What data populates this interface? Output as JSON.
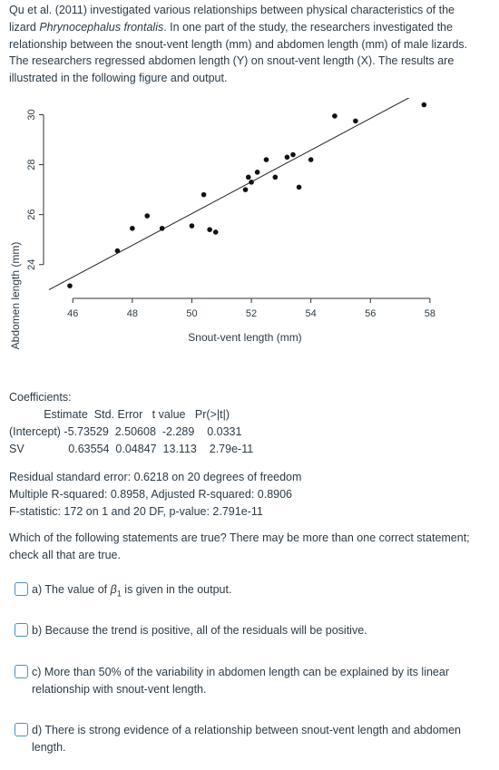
{
  "intro": {
    "part1": "Qu et al. (2011) investigated various relationships between physical characteristics of the lizard ",
    "species": "Phrynocephalus frontalis",
    "part2": ". In one part of the study, the researchers investigated the relationship between the snout-vent length (mm) and abdomen length (mm) of male lizards.  The researchers regressed abdomen length (Y) on snout-vent length (X). The results are illustrated in the following figure and output."
  },
  "chart_data": {
    "type": "scatter",
    "xlabel": "Snout-vent length (mm)",
    "ylabel": "Abdomen length (mm)",
    "xlim": [
      45.2,
      58.4
    ],
    "ylim": [
      22.9,
      30.6
    ],
    "xticks": [
      "46",
      "48",
      "50",
      "52",
      "54",
      "56",
      "58"
    ],
    "yticks": [
      "24",
      "26",
      "28",
      "30"
    ],
    "regression_line": {
      "intercept": -5.73529,
      "slope": 0.63554,
      "x_range": [
        45.2,
        58.3
      ]
    },
    "points": [
      {
        "x": 45.9,
        "y": 23.15
      },
      {
        "x": 47.5,
        "y": 24.55
      },
      {
        "x": 48.0,
        "y": 25.45
      },
      {
        "x": 48.5,
        "y": 25.95
      },
      {
        "x": 49.0,
        "y": 25.45
      },
      {
        "x": 50.0,
        "y": 25.55
      },
      {
        "x": 50.4,
        "y": 26.8
      },
      {
        "x": 50.6,
        "y": 25.4
      },
      {
        "x": 50.8,
        "y": 25.3
      },
      {
        "x": 51.8,
        "y": 27.0
      },
      {
        "x": 51.9,
        "y": 27.5
      },
      {
        "x": 52.0,
        "y": 27.3
      },
      {
        "x": 52.2,
        "y": 27.7
      },
      {
        "x": 52.5,
        "y": 28.2
      },
      {
        "x": 52.8,
        "y": 27.5
      },
      {
        "x": 53.2,
        "y": 28.3
      },
      {
        "x": 53.4,
        "y": 28.4
      },
      {
        "x": 53.6,
        "y": 27.1
      },
      {
        "x": 54.0,
        "y": 28.2
      },
      {
        "x": 54.8,
        "y": 29.95
      },
      {
        "x": 55.5,
        "y": 29.75
      },
      {
        "x": 57.8,
        "y": 30.4
      }
    ]
  },
  "output": {
    "coef_title": "Coefficients:",
    "coef_table": "           Estimate  Std. Error   t value   Pr(>|t|)\n(Intercept) -5.73529  2.50608  -2.289    0.0331\nSV              0.63554  0.04847  13.113    2.79e-11",
    "residuals": "Residual standard error: 0.6218 on 20 degrees of freedom\nMultiple R-squared: 0.8958, Adjusted R-squared: 0.8906\nF-statistic: 172 on 1 and 20 DF, p-value: 2.791e-11"
  },
  "question": "Which of the following statements are true? There may be more than one correct statement; check all that are true.",
  "options": {
    "a_prefix": "a) The value of ",
    "a_beta": "β",
    "a_beta_sub": "1",
    "a_suffix": " is given in the output.",
    "b": "b) Because the trend is positive, all of the residuals will be positive.",
    "c": "c) More than 50% of the variability in abdomen length can be explained by its linear relationship with snout-vent length.",
    "d": "d) There is strong evidence of a relationship between snout-vent length and abdomen length."
  }
}
